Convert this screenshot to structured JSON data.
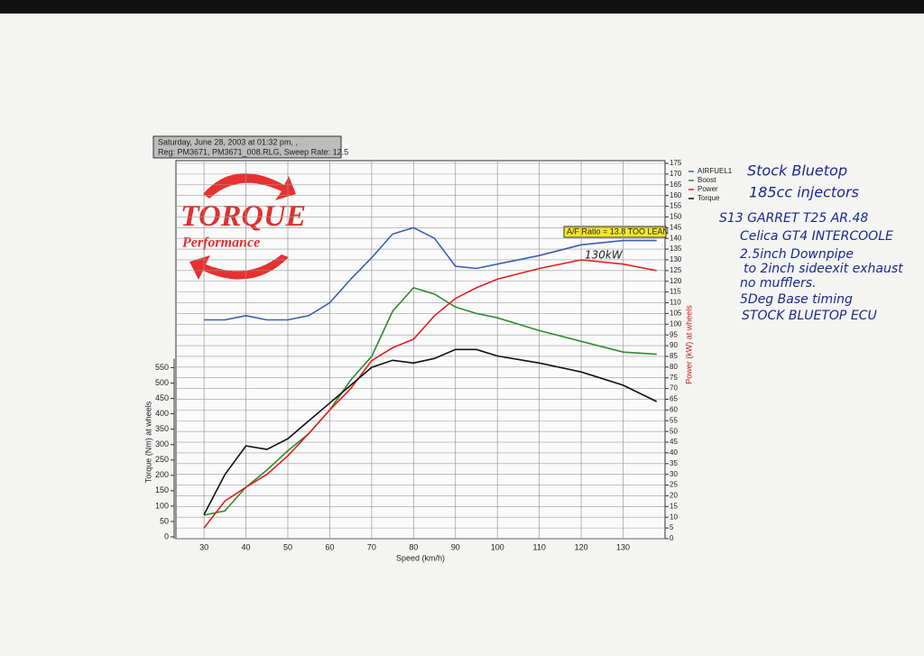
{
  "header": {
    "line1": "Saturday, June 28, 2003  at  01:32 pm, ,",
    "line2": "Reg: PM3671, PM3671_008.RLG,  Sweep Rate: 12.5"
  },
  "logo": {
    "title": "TORQUE",
    "subtitle": "Performance"
  },
  "notes": [
    "Stock Bluetop",
    "185cc injectors",
    "S13 GARRET T25 AR.48",
    "Celica GT4 INTERCOOLE",
    "2.5inch Downpipe",
    "to 2inch sideexit exhaust",
    "no mufflers.",
    "5Deg Base timing",
    "STOCK BLUETOP ECU"
  ],
  "chart_data": {
    "type": "line",
    "xlabel": "Speed (km/h)",
    "ylabel": "Torque (Nm) at wheels",
    "y2label": "Power (kW) at wheels",
    "annotations": [
      "A/F Ratio = 13.8 TOO LEAN",
      "130kW"
    ],
    "x": [
      30,
      35,
      40,
      45,
      50,
      55,
      60,
      65,
      70,
      75,
      80,
      85,
      90,
      95,
      100,
      110,
      120,
      130,
      138
    ],
    "xlim": [
      23.3,
      140
    ],
    "xticks": [
      30,
      40,
      50,
      60,
      70,
      80,
      90,
      100,
      110,
      120,
      130
    ],
    "ylim": [
      0,
      1214
    ],
    "yticks": [
      0,
      50,
      100,
      150,
      200,
      250,
      300,
      350,
      400,
      450,
      500,
      550
    ],
    "y2lim": [
      0,
      175
    ],
    "y2ticks": [
      0,
      5,
      10,
      15,
      20,
      25,
      30,
      35,
      40,
      45,
      50,
      55,
      60,
      65,
      70,
      75,
      80,
      85,
      90,
      95,
      100,
      105,
      110,
      115,
      120,
      125,
      130,
      135,
      140,
      145,
      150,
      155,
      160,
      165,
      170,
      175
    ],
    "grid": true,
    "series": [
      {
        "name": "AIRFUEL1",
        "color": "#3a5fb0",
        "axis": "y2",
        "values": [
          102,
          102,
          104,
          102,
          102,
          104,
          110,
          121,
          131,
          142,
          145,
          140,
          127,
          126,
          128,
          132,
          137,
          139,
          139
        ]
      },
      {
        "name": "Boost",
        "color": "#2e8b2e",
        "axis": "y2",
        "values": [
          11,
          13,
          24,
          32,
          41,
          49,
          60,
          74,
          85,
          106,
          117,
          114,
          108,
          105,
          103,
          97,
          92,
          87,
          86
        ]
      },
      {
        "name": "Power",
        "color": "#e02020",
        "axis": "y2",
        "values": [
          5,
          17.6,
          24,
          30,
          38.6,
          49,
          60,
          70,
          83,
          89,
          93,
          104,
          112,
          117,
          121,
          126,
          130,
          128,
          125
        ]
      },
      {
        "name": "Torque",
        "color": "#111111",
        "axis": "y",
        "values": [
          72,
          203,
          296,
          284,
          319,
          377,
          435,
          493,
          551,
          574,
          565,
          580,
          609,
          609,
          588,
          565,
          536,
          493,
          440
        ]
      }
    ]
  }
}
